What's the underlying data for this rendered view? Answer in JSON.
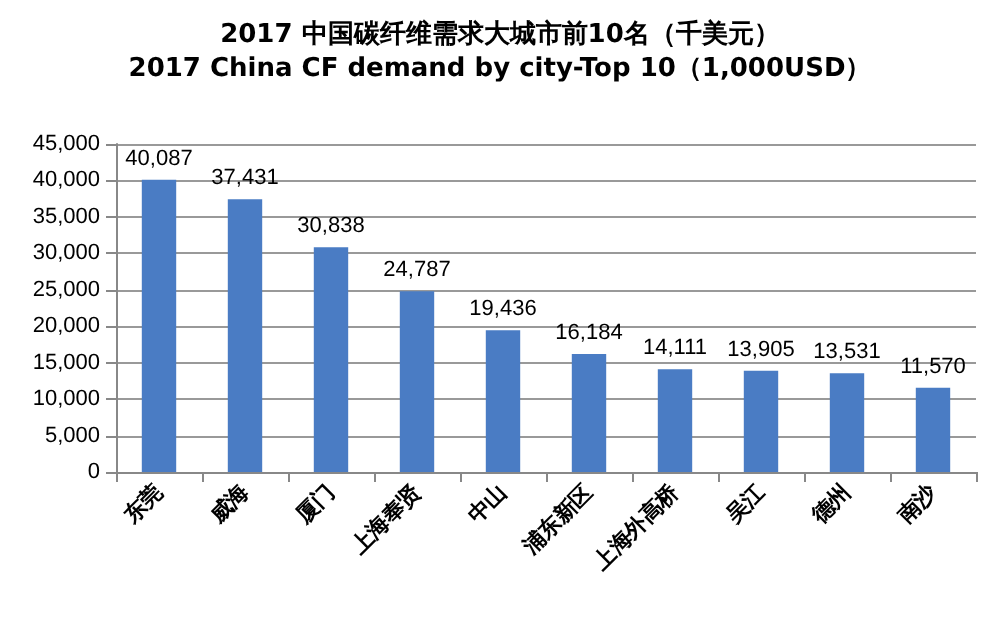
{
  "chart_data": {
    "type": "bar",
    "title": "2017 中国碳纤维需求大城市前10名（千美元）",
    "subtitle": "2017 China CF demand by city-Top 10（1,000USD）",
    "categories": [
      "东莞",
      "威海",
      "厦门",
      "上海奉贤",
      "中山",
      "浦东新区",
      "上海外高桥",
      "吴江",
      "德州",
      "南沙"
    ],
    "values": [
      40087,
      37431,
      30838,
      24787,
      19436,
      16184,
      14111,
      13905,
      13531,
      11570
    ],
    "value_labels": [
      "40,087",
      "37,431",
      "30,838",
      "24,787",
      "19,436",
      "16,184",
      "14,111",
      "13,905",
      "13,531",
      "11,570"
    ],
    "color": "#4a7cc4",
    "ylim": [
      0,
      45000
    ],
    "yticks": [
      0,
      {
        "value": 5000,
        "label": "5,000"
      },
      {
        "value": 10000,
        "label": "10,000"
      },
      {
        "value": 15000,
        "label": "15,000"
      },
      {
        "value": 20000,
        "label": "20,000"
      },
      {
        "value": 25000,
        "label": "25,000"
      },
      {
        "value": 30000,
        "label": "30,000"
      },
      {
        "value": 35000,
        "label": "35,000"
      },
      {
        "value": 40000,
        "label": "40,000"
      },
      {
        "value": 45000,
        "label": "45,000"
      }
    ],
    "grid": "y"
  }
}
